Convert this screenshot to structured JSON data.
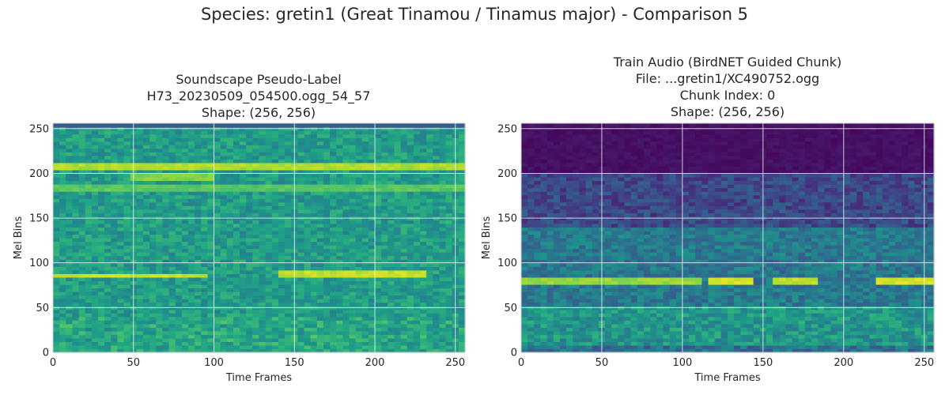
{
  "figure": {
    "suptitle": "Species: gretin1 (Great Tinamou / Tinamus major) - Comparison 5"
  },
  "chart_data": [
    {
      "type": "heatmap",
      "colormap": "viridis",
      "title_lines": [
        "Soundscape Pseudo-Label",
        "H73_20230509_054500.ogg_54_57",
        "Shape: (256, 256)"
      ],
      "xlabel": "Time Frames",
      "ylabel": "Mel Bins",
      "xlim": [
        0,
        256
      ],
      "ylim": [
        0,
        256
      ],
      "xticks": [
        0,
        50,
        100,
        150,
        200,
        250
      ],
      "yticks": [
        0,
        50,
        100,
        150,
        200,
        250
      ],
      "grid": true,
      "background_level": 0.55,
      "bands": [
        {
          "mel": 207,
          "from": 0,
          "to": 256,
          "level": 0.92
        },
        {
          "mel": 196,
          "from": 50,
          "to": 100,
          "level": 0.85
        },
        {
          "mel": 183,
          "from": 0,
          "to": 256,
          "level": 0.78
        },
        {
          "mel": 86,
          "from": 0,
          "to": 95,
          "level": 0.95
        },
        {
          "mel": 88,
          "from": 140,
          "to": 230,
          "level": 0.95
        }
      ]
    },
    {
      "type": "heatmap",
      "colormap": "viridis",
      "title_lines": [
        "Train Audio (BirdNET Guided Chunk)",
        "File: ...gretin1/XC490752.ogg",
        "Chunk Index: 0",
        "Shape: (256, 256)"
      ],
      "xlabel": "Time Frames",
      "ylabel": "Mel Bins",
      "xlim": [
        0,
        256
      ],
      "ylim": [
        0,
        256
      ],
      "xticks": [
        0,
        50,
        100,
        150,
        200,
        250
      ],
      "yticks": [
        0,
        50,
        100,
        150,
        200,
        250
      ],
      "grid": true,
      "background_level": 0.35,
      "bands": [
        {
          "mel": 80,
          "from": 0,
          "to": 110,
          "level": 0.88
        },
        {
          "mel": 80,
          "from": 115,
          "to": 145,
          "level": 0.98
        },
        {
          "mel": 80,
          "from": 155,
          "to": 185,
          "level": 0.95
        },
        {
          "mel": 80,
          "from": 220,
          "to": 256,
          "level": 0.98
        }
      ]
    }
  ]
}
